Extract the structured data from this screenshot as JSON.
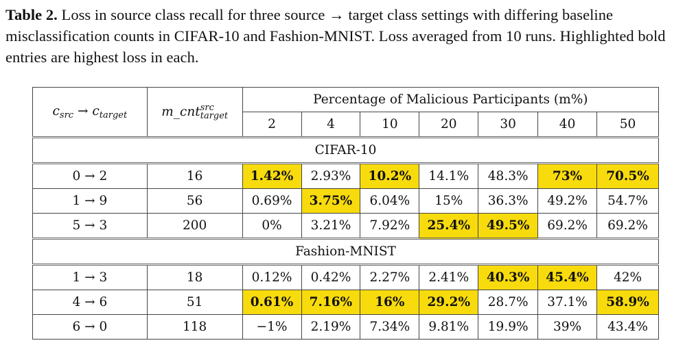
{
  "caption": {
    "label": "Table 2.",
    "text": "Loss in source class recall for three source → target class settings with differing baseline misclassification counts in CIFAR-10 and Fashion-MNIST. Loss averaged from 10 runs. Highlighted bold entries are highest loss in each."
  },
  "table": {
    "col1_header": {
      "c": "c",
      "src": "src",
      "arrow": "→",
      "c2": "c",
      "target": "target"
    },
    "col2_header": {
      "base": "m_cnt",
      "sup": "src",
      "sub": "target"
    },
    "group_header": "Percentage of Malicious Participants (m%)",
    "percent_columns": [
      "2",
      "4",
      "10",
      "20",
      "30",
      "40",
      "50"
    ],
    "sections": [
      {
        "name": "CIFAR-10",
        "rows": [
          {
            "setting": "0 → 2",
            "count": "16",
            "values": [
              "1.42%",
              "2.93%",
              "10.2%",
              "14.1%",
              "48.3%",
              "73%",
              "70.5%"
            ],
            "highlight": [
              true,
              false,
              true,
              false,
              false,
              true,
              true
            ]
          },
          {
            "setting": "1 → 9",
            "count": "56",
            "values": [
              "0.69%",
              "3.75%",
              "6.04%",
              "15%",
              "36.3%",
              "49.2%",
              "54.7%"
            ],
            "highlight": [
              false,
              true,
              false,
              false,
              false,
              false,
              false
            ]
          },
          {
            "setting": "5 → 3",
            "count": "200",
            "values": [
              "0%",
              "3.21%",
              "7.92%",
              "25.4%",
              "49.5%",
              "69.2%",
              "69.2%"
            ],
            "highlight": [
              false,
              false,
              false,
              true,
              true,
              false,
              false
            ]
          }
        ]
      },
      {
        "name": "Fashion-MNIST",
        "rows": [
          {
            "setting": "1 → 3",
            "count": "18",
            "values": [
              "0.12%",
              "0.42%",
              "2.27%",
              "2.41%",
              "40.3%",
              "45.4%",
              "42%"
            ],
            "highlight": [
              false,
              false,
              false,
              false,
              true,
              true,
              false
            ]
          },
          {
            "setting": "4 → 6",
            "count": "51",
            "values": [
              "0.61%",
              "7.16%",
              "16%",
              "29.2%",
              "28.7%",
              "37.1%",
              "58.9%"
            ],
            "highlight": [
              true,
              true,
              true,
              true,
              false,
              false,
              true
            ]
          },
          {
            "setting": "6 → 0",
            "count": "118",
            "values": [
              "−1%",
              "2.19%",
              "7.34%",
              "9.81%",
              "19.9%",
              "39%",
              "43.4%"
            ],
            "highlight": [
              false,
              false,
              false,
              false,
              false,
              false,
              false
            ]
          }
        ]
      }
    ],
    "highlight_color": "#f8db0c"
  }
}
